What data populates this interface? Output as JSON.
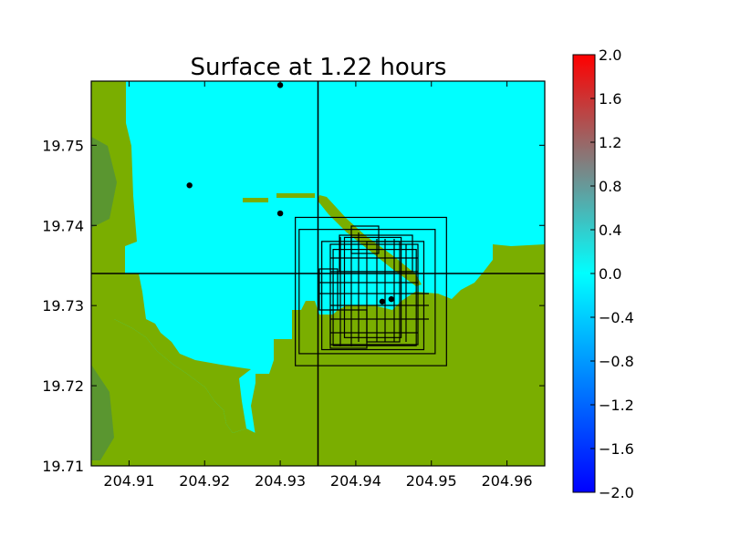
{
  "chart_data": {
    "type": "heatmap",
    "title": "Surface at 1.22 hours",
    "xlabel": "",
    "ylabel": "",
    "xlim": [
      204.905,
      204.965
    ],
    "ylim": [
      19.71,
      19.758
    ],
    "x_ticks": [
      {
        "value": 204.91,
        "label": "204.91"
      },
      {
        "value": 204.92,
        "label": "204.92"
      },
      {
        "value": 204.93,
        "label": "204.93"
      },
      {
        "value": 204.94,
        "label": "204.94"
      },
      {
        "value": 204.95,
        "label": "204.95"
      },
      {
        "value": 204.96,
        "label": "204.96"
      }
    ],
    "y_ticks": [
      {
        "value": 19.71,
        "label": "19.71"
      },
      {
        "value": 19.72,
        "label": "19.72"
      },
      {
        "value": 19.73,
        "label": "19.73"
      },
      {
        "value": 19.74,
        "label": "19.74"
      },
      {
        "value": 19.75,
        "label": "19.75"
      }
    ],
    "grid": false,
    "colors": {
      "water": "#00ffff",
      "land": "#7aae00",
      "land_dark": "#5a9630",
      "axis": "#000000"
    },
    "crosshair": {
      "x": 204.935,
      "y": 19.734
    },
    "gauges": [
      {
        "x": 204.93,
        "y": 19.7575
      },
      {
        "x": 204.918,
        "y": 19.745
      },
      {
        "x": 204.93,
        "y": 19.7415
      },
      {
        "x": 204.9435,
        "y": 19.7305
      },
      {
        "x": 204.9447,
        "y": 19.7308
      }
    ],
    "refinement_regions": [
      {
        "x": [
          204.932,
          204.952
        ],
        "y": [
          19.7225,
          19.741
        ]
      },
      {
        "x": [
          204.9325,
          204.9505
        ],
        "y": [
          19.724,
          19.7395
        ]
      },
      {
        "x": [
          204.9355,
          204.949
        ],
        "y": [
          19.7245,
          19.738
        ]
      },
      {
        "x": [
          204.937,
          204.948
        ],
        "y": [
          19.725,
          19.737
        ]
      },
      {
        "x": [
          204.9385,
          204.946
        ],
        "y": [
          19.726,
          19.7385
        ]
      }
    ],
    "colorbar": {
      "range": [
        -2.0,
        2.0
      ],
      "ticks": [
        {
          "value": 2.0,
          "label": "2.0"
        },
        {
          "value": 1.6,
          "label": "1.6"
        },
        {
          "value": 1.2,
          "label": "1.2"
        },
        {
          "value": 0.8,
          "label": "0.8"
        },
        {
          "value": 0.4,
          "label": "0.4"
        },
        {
          "value": 0.0,
          "label": "0.0"
        },
        {
          "value": -0.4,
          "label": "−0.4"
        },
        {
          "value": -0.8,
          "label": "−0.8"
        },
        {
          "value": -1.2,
          "label": "−1.2"
        },
        {
          "value": -1.6,
          "label": "−1.6"
        },
        {
          "value": -2.0,
          "label": "−2.0"
        }
      ],
      "colors": [
        "#0000ff",
        "#00ffff",
        "#ff0000"
      ]
    }
  }
}
